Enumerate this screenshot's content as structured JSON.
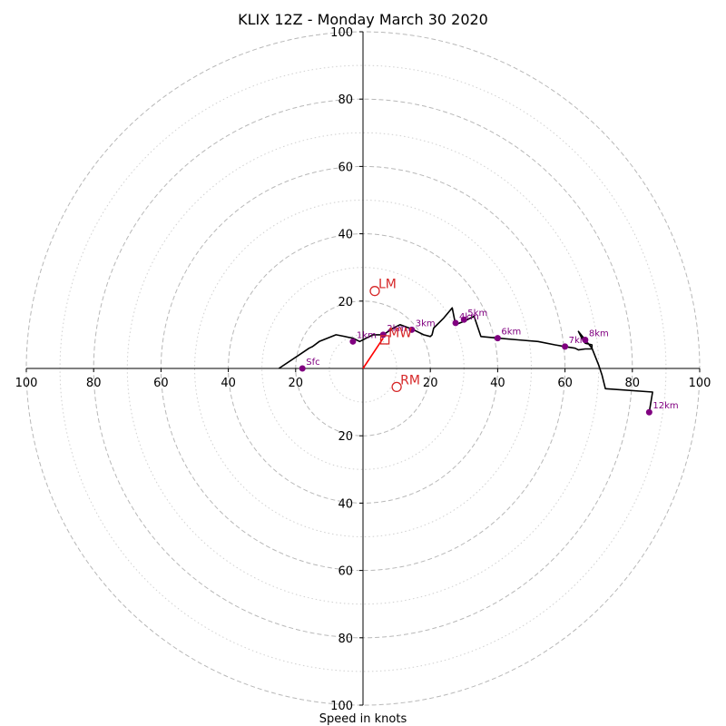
{
  "chart_data": {
    "type": "hodograph",
    "title": "KLIX 12Z - Monday March 30 2020",
    "xlabel": "Speed in knots",
    "units": "knots",
    "range": 100,
    "rings": {
      "major": [
        20,
        40,
        60,
        80,
        100
      ],
      "minor": [
        10,
        30,
        50,
        70,
        90
      ],
      "major_style": "dashed gray",
      "minor_style": "dotted light gray"
    },
    "tick_labels": {
      "x_left": [
        "100",
        "80",
        "60",
        "40",
        "20"
      ],
      "x_right": [
        "20",
        "40",
        "60",
        "80",
        "100"
      ],
      "y_top": [
        "20",
        "40",
        "60",
        "80",
        "100"
      ],
      "y_bottom": [
        "20",
        "40",
        "60",
        "80",
        "100"
      ]
    },
    "hodograph_line": {
      "color": "#000000",
      "points": [
        [
          -25,
          0
        ],
        [
          -19,
          4
        ],
        [
          -16,
          6
        ],
        [
          -15,
          6.5
        ],
        [
          -13,
          8
        ],
        [
          -8,
          10
        ],
        [
          -3,
          9
        ],
        [
          -1,
          8
        ],
        [
          3,
          10
        ],
        [
          6,
          10
        ],
        [
          9,
          12
        ],
        [
          11,
          13
        ],
        [
          15,
          11.5
        ],
        [
          18,
          10
        ],
        [
          20,
          9.5
        ],
        [
          20.5,
          10
        ],
        [
          21,
          12
        ],
        [
          24,
          15
        ],
        [
          26.5,
          18
        ],
        [
          27.5,
          13
        ],
        [
          30,
          14
        ],
        [
          33,
          15.5
        ],
        [
          35,
          9.5
        ],
        [
          40,
          9
        ],
        [
          46,
          8.5
        ],
        [
          52,
          8
        ],
        [
          57,
          7
        ],
        [
          60,
          6.5
        ],
        [
          63,
          6
        ],
        [
          64,
          5.5
        ],
        [
          66,
          5.8
        ],
        [
          68,
          5.8
        ],
        [
          68,
          7
        ],
        [
          66,
          7.5
        ],
        [
          65,
          9
        ],
        [
          64,
          11
        ],
        [
          66,
          8.5
        ],
        [
          68,
          6
        ],
        [
          70,
          1
        ],
        [
          71,
          -2
        ],
        [
          72,
          -6
        ],
        [
          86,
          -7
        ],
        [
          85,
          -13
        ]
      ]
    },
    "storm_motion_line": {
      "color": "#ff0000",
      "from": [
        0,
        0
      ],
      "to": [
        6,
        9
      ]
    },
    "height_markers": [
      {
        "label": "Sfc",
        "u": -18,
        "v": 0
      },
      {
        "label": "1km",
        "u": -3,
        "v": 8
      },
      {
        "label": "2km",
        "u": 6,
        "v": 10
      },
      {
        "label": "3km",
        "u": 14.5,
        "v": 11.5
      },
      {
        "label": "4km",
        "u": 27.5,
        "v": 13.5
      },
      {
        "label": "5km",
        "u": 30,
        "v": 14.5
      },
      {
        "label": "6km",
        "u": 40,
        "v": 9
      },
      {
        "label": "7km",
        "u": 60,
        "v": 6.5
      },
      {
        "label": "8km",
        "u": 66,
        "v": 8.5
      },
      {
        "label": "12km",
        "u": 85,
        "v": -13
      }
    ],
    "marker_color": "#800080",
    "storm_motions": [
      {
        "label": "LM",
        "u": 3.5,
        "v": 23,
        "marker": "circle"
      },
      {
        "label": "MW",
        "u": 6.5,
        "v": 8.5,
        "marker": "square"
      },
      {
        "label": "RM",
        "u": 10,
        "v": -5.5,
        "marker": "circle"
      }
    ],
    "storm_motion_color": "#d62728"
  }
}
